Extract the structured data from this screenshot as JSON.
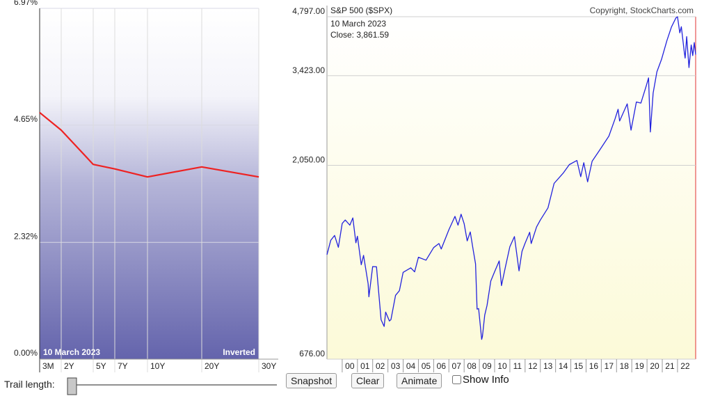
{
  "chart_data": [
    {
      "type": "line",
      "categories": [
        "3M",
        "2Y",
        "5Y",
        "7Y",
        "10Y",
        "20Y",
        "30Y"
      ],
      "values": [
        4.9,
        4.55,
        3.87,
        3.78,
        3.62,
        3.82,
        3.62
      ],
      "color": "#ee2222",
      "ylim": [
        0,
        6.97
      ],
      "yticks": [
        {
          "value": 0,
          "label": "0.00%"
        },
        {
          "value": 2.32,
          "label": "2.32%"
        },
        {
          "value": 4.65,
          "label": "4.65%"
        },
        {
          "value": 6.97,
          "label": "6.97%"
        }
      ],
      "grid": true,
      "date_label": "10  March 2023",
      "status": "Inverted"
    },
    {
      "type": "line",
      "title": "S&P 500 ($SPX)",
      "copyright": "Copyright, StockCharts.com",
      "date_label": "10  March 2023",
      "close_label": "Close: 3,861.59",
      "color": "#2222dd",
      "log_scale": true,
      "grid": true,
      "x": [
        1999.0,
        1999.25,
        1999.5,
        1999.75,
        2000.0,
        2000.2,
        2000.5,
        2000.7,
        2000.9,
        2001.0,
        2001.25,
        2001.4,
        2001.7,
        2001.75,
        2002.0,
        2002.25,
        2002.55,
        2002.75,
        2002.85,
        2003.1,
        2003.2,
        2003.5,
        2003.75,
        2004.0,
        2004.5,
        2004.75,
        2005.0,
        2005.5,
        2006.0,
        2006.35,
        2006.5,
        2007.0,
        2007.4,
        2007.6,
        2007.8,
        2008.0,
        2008.2,
        2008.4,
        2008.6,
        2008.75,
        2008.85,
        2008.95,
        2009.15,
        2009.2,
        2009.35,
        2009.5,
        2009.75,
        2010.0,
        2010.3,
        2010.45,
        2010.7,
        2011.0,
        2011.3,
        2011.6,
        2011.8,
        2012.0,
        2012.3,
        2012.4,
        2012.75,
        2013.0,
        2013.5,
        2013.9,
        2014.5,
        2014.9,
        2015.4,
        2015.65,
        2015.85,
        2016.1,
        2016.4,
        2016.9,
        2017.5,
        2017.9,
        2018.1,
        2018.2,
        2018.7,
        2018.95,
        2019.3,
        2019.6,
        2019.95,
        2020.1,
        2020.22,
        2020.4,
        2020.65,
        2020.95,
        2021.3,
        2021.6,
        2021.9,
        2022.0,
        2022.15,
        2022.25,
        2022.45,
        2022.5,
        2022.6,
        2022.75,
        2022.9,
        2023.0,
        2023.1,
        2023.19
      ],
      "values": [
        1229,
        1335,
        1372,
        1282,
        1469,
        1499,
        1455,
        1517,
        1315,
        1366,
        1160,
        1224,
        1040,
        966,
        1148,
        1147,
        847,
        815,
        885,
        841,
        848,
        974,
        1000,
        1111,
        1140,
        1114,
        1211,
        1191,
        1280,
        1310,
        1270,
        1418,
        1530,
        1455,
        1549,
        1468,
        1330,
        1400,
        1260,
        1166,
        900,
        903,
        757,
        770,
        870,
        919,
        1057,
        1115,
        1186,
        1030,
        1141,
        1286,
        1363,
        1120,
        1253,
        1312,
        1397,
        1310,
        1440,
        1498,
        1606,
        1848,
        1960,
        2058,
        2107,
        1920,
        2080,
        1865,
        2098,
        2238,
        2423,
        2673,
        2824,
        2640,
        2913,
        2506,
        2945,
        2926,
        3230,
        3380,
        2480,
        3100,
        3500,
        3756,
        4180,
        4522,
        4766,
        4796,
        4373,
        4530,
        3900,
        3785,
        4280,
        3585,
        4080,
        3839,
        4136,
        3861.59
      ],
      "xlim": [
        1999,
        2023.19
      ],
      "xticks": [
        {
          "value": 2000,
          "label": "00"
        },
        {
          "value": 2001,
          "label": "01"
        },
        {
          "value": 2002,
          "label": "02"
        },
        {
          "value": 2003,
          "label": "03"
        },
        {
          "value": 2004,
          "label": "04"
        },
        {
          "value": 2005,
          "label": "05"
        },
        {
          "value": 2006,
          "label": "06"
        },
        {
          "value": 2007,
          "label": "07"
        },
        {
          "value": 2008,
          "label": "08"
        },
        {
          "value": 2009,
          "label": "09"
        },
        {
          "value": 2010,
          "label": "10"
        },
        {
          "value": 2011,
          "label": "11"
        },
        {
          "value": 2012,
          "label": "12"
        },
        {
          "value": 2013,
          "label": "13"
        },
        {
          "value": 2014,
          "label": "14"
        },
        {
          "value": 2015,
          "label": "15"
        },
        {
          "value": 2016,
          "label": "16"
        },
        {
          "value": 2017,
          "label": "17"
        },
        {
          "value": 2018,
          "label": "18"
        },
        {
          "value": 2019,
          "label": "19"
        },
        {
          "value": 2020,
          "label": "20"
        },
        {
          "value": 2021,
          "label": "21"
        },
        {
          "value": 2022,
          "label": "22"
        }
      ],
      "ylim": [
        676,
        4797
      ],
      "yticks": [
        {
          "value": 676,
          "label": "676.00"
        },
        {
          "value": 2050,
          "label": "2,050.00"
        },
        {
          "value": 3423,
          "label": "3,423.00"
        },
        {
          "value": 4797,
          "label": "4,797.00"
        }
      ]
    }
  ],
  "controls": {
    "trail_label": "Trail length:",
    "buttons": [
      "Snapshot",
      "Clear",
      "Animate"
    ],
    "checkbox": "Show Info"
  }
}
